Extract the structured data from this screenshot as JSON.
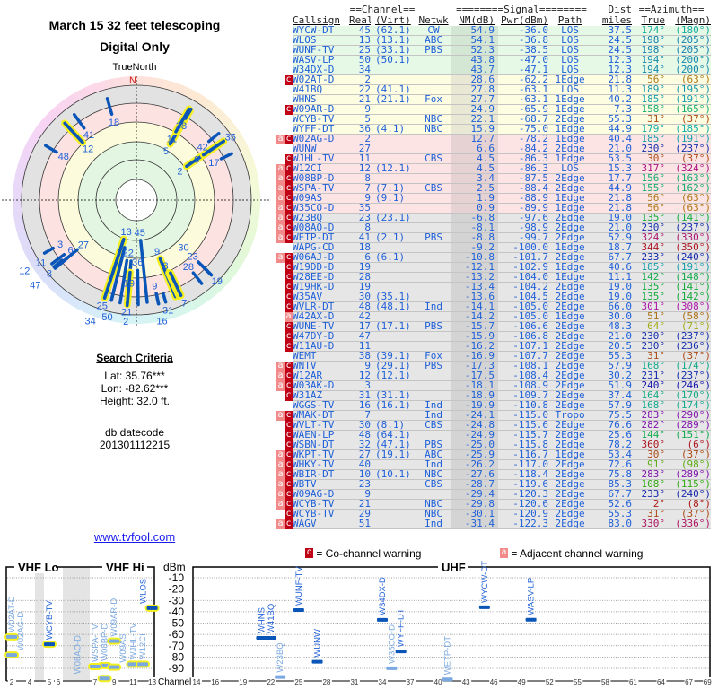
{
  "left": {
    "title": "March 15 32 feet telescoping",
    "subtitle": "Digital Only",
    "north_label": "TrueNorth",
    "north_marker": "N",
    "search_heading": "Search Criteria",
    "lat": "Lat: 35.76***",
    "lon": "Lon: -82.62***",
    "height": "Height: 32.0 ft.",
    "db_label": "db datecode",
    "db_value": "201301112215",
    "link": "www.tvfool.com"
  },
  "table": {
    "group_headers": {
      "channel": "==Channel==",
      "signal": "========Signal========",
      "dist": "Dist",
      "azimuth": "==Azimuth=="
    },
    "columns": [
      "Callsign",
      "Real",
      "(Virt)",
      "Netwk",
      "NM(dB)",
      "Pwr(dBm)",
      "Path",
      "miles",
      "True",
      "(Magn)"
    ],
    "rows": [
      {
        "flags": "",
        "call": "WYCW-DT",
        "real": "45",
        "virt": "(62.1)",
        "net": "CW",
        "nm": "54.9",
        "pwr": "-36.0",
        "path": "LOS",
        "dist": "37.5",
        "az": "174°",
        "magn": "(180°)"
      },
      {
        "flags": "",
        "call": "WLOS",
        "real": "13",
        "virt": "(13.1)",
        "net": "ABC",
        "nm": "54.1",
        "pwr": "-36.8",
        "path": "LOS",
        "dist": "24.5",
        "az": "198°",
        "magn": "(205°)"
      },
      {
        "flags": "",
        "call": "WUNF-TV",
        "real": "25",
        "virt": "(33.1)",
        "net": "PBS",
        "nm": "52.3",
        "pwr": "-38.5",
        "path": "LOS",
        "dist": "24.5",
        "az": "198°",
        "magn": "(205°)"
      },
      {
        "flags": "",
        "call": "WASV-LP",
        "real": "50",
        "virt": "(50.1)",
        "net": "",
        "nm": "43.8",
        "pwr": "-47.0",
        "path": "LOS",
        "dist": "12.3",
        "az": "194°",
        "magn": "(200°)"
      },
      {
        "flags": "",
        "call": "W34DX-D",
        "real": "34",
        "virt": "",
        "net": "",
        "nm": "43.7",
        "pwr": "-47.1",
        "path": "LOS",
        "dist": "12.3",
        "az": "194°",
        "magn": "(200°)"
      },
      {
        "flags": "c",
        "call": "W02AT-D",
        "real": "2",
        "virt": "",
        "net": "",
        "nm": "28.6",
        "pwr": "-62.2",
        "path": "1Edge",
        "dist": "21.8",
        "az": "56°",
        "magn": "(63°)"
      },
      {
        "flags": "",
        "call": "W41BQ",
        "real": "22",
        "virt": "(41.1)",
        "net": "",
        "nm": "27.8",
        "pwr": "-63.1",
        "path": "LOS",
        "dist": "11.3",
        "az": "189°",
        "magn": "(195°)"
      },
      {
        "flags": "",
        "call": "WHNS",
        "real": "21",
        "virt": "(21.1)",
        "net": "Fox",
        "nm": "27.7",
        "pwr": "-63.1",
        "path": "1Edge",
        "dist": "40.2",
        "az": "185°",
        "magn": "(191°)"
      },
      {
        "flags": "c",
        "call": "W09AR-D",
        "real": "9",
        "virt": "",
        "net": "",
        "nm": "24.9",
        "pwr": "-65.9",
        "path": "1Edge",
        "dist": "7.3",
        "az": "158°",
        "magn": "(165°)"
      },
      {
        "flags": "",
        "call": "WCYB-TV",
        "real": "5",
        "virt": "",
        "net": "NBC",
        "nm": "22.1",
        "pwr": "-68.7",
        "path": "2Edge",
        "dist": "55.3",
        "az": "31°",
        "magn": "(37°)"
      },
      {
        "flags": "",
        "call": "WYFF-DT",
        "real": "36",
        "virt": "(4.1)",
        "net": "NBC",
        "nm": "15.9",
        "pwr": "-75.0",
        "path": "1Edge",
        "dist": "44.9",
        "az": "179°",
        "magn": "(185°)"
      },
      {
        "flags": "ac",
        "call": "W02AG-D",
        "real": "2",
        "virt": "",
        "net": "",
        "nm": "12.7",
        "pwr": "-78.2",
        "path": "1Edge",
        "dist": "40.4",
        "az": "185°",
        "magn": "(191°)"
      },
      {
        "flags": "",
        "call": "WUNW",
        "real": "27",
        "virt": "",
        "net": "",
        "nm": "6.6",
        "pwr": "-84.2",
        "path": "2Edge",
        "dist": "21.0",
        "az": "230°",
        "magn": "(237°)"
      },
      {
        "flags": "c",
        "call": "WJHL-TV",
        "real": "11",
        "virt": "",
        "net": "CBS",
        "nm": "4.5",
        "pwr": "-86.3",
        "path": "1Edge",
        "dist": "53.5",
        "az": "30°",
        "magn": "(37°)"
      },
      {
        "flags": "ac",
        "call": "W12CI",
        "real": "12",
        "virt": "(12.1)",
        "net": "",
        "nm": "4.5",
        "pwr": "-86.3",
        "path": "LOS",
        "dist": "15.3",
        "az": "317°",
        "magn": "(324°)"
      },
      {
        "flags": "ac",
        "call": "W08BP-D",
        "real": "8",
        "virt": "",
        "net": "",
        "nm": "3.4",
        "pwr": "-87.5",
        "path": "2Edge",
        "dist": "17.7",
        "az": "156°",
        "magn": "(163°)"
      },
      {
        "flags": "ac",
        "call": "WSPA-TV",
        "real": "7",
        "virt": "(7.1)",
        "net": "CBS",
        "nm": "2.5",
        "pwr": "-88.4",
        "path": "2Edge",
        "dist": "44.9",
        "az": "155°",
        "magn": "(162°)"
      },
      {
        "flags": "ac",
        "call": "W09AS",
        "real": "9",
        "virt": "(9.1)",
        "net": "",
        "nm": "1.9",
        "pwr": "-88.9",
        "path": "1Edge",
        "dist": "21.8",
        "az": "56°",
        "magn": "(63°)"
      },
      {
        "flags": "ac",
        "call": "W35CO-D",
        "real": "35",
        "virt": "",
        "net": "",
        "nm": "0.9",
        "pwr": "-89.9",
        "path": "1Edge",
        "dist": "21.8",
        "az": "56°",
        "magn": "(63°)"
      },
      {
        "flags": "ac",
        "call": "W23BQ",
        "real": "23",
        "virt": "(23.1)",
        "net": "",
        "nm": "-6.8",
        "pwr": "-97.6",
        "path": "2Edge",
        "dist": "19.0",
        "az": "135°",
        "magn": "(141°)"
      },
      {
        "flags": "ac",
        "call": "W08AO-D",
        "real": "8",
        "virt": "",
        "net": "",
        "nm": "-8.1",
        "pwr": "-98.9",
        "path": "2Edge",
        "dist": "21.0",
        "az": "230°",
        "magn": "(237°)"
      },
      {
        "flags": "ac",
        "call": "WETP-DT",
        "real": "41",
        "virt": "(2.1)",
        "net": "PBS",
        "nm": "-8.8",
        "pwr": "-99.7",
        "path": "2Edge",
        "dist": "52.9",
        "az": "324°",
        "magn": "(330°)"
      },
      {
        "flags": "",
        "call": "WAPG-CD",
        "real": "18",
        "virt": "",
        "net": "",
        "nm": "-9.2",
        "pwr": "-100.0",
        "path": "1Edge",
        "dist": "18.7",
        "az": "344°",
        "magn": "(350°)"
      },
      {
        "flags": "ac",
        "call": "W06AJ-D",
        "real": "6",
        "virt": "(6.1)",
        "net": "",
        "nm": "-10.8",
        "pwr": "-101.7",
        "path": "2Edge",
        "dist": "67.7",
        "az": "233°",
        "magn": "(240°)"
      },
      {
        "flags": "c",
        "call": "W19DD-D",
        "real": "19",
        "virt": "",
        "net": "",
        "nm": "-12.1",
        "pwr": "-102.9",
        "path": "1Edge",
        "dist": "40.6",
        "az": "185°",
        "magn": "(191°)"
      },
      {
        "flags": "c",
        "call": "W28EE-D",
        "real": "28",
        "virt": "",
        "net": "",
        "nm": "-13.2",
        "pwr": "-104.0",
        "path": "1Edge",
        "dist": "11.1",
        "az": "142°",
        "magn": "(148°)"
      },
      {
        "flags": "c",
        "call": "W19HK-D",
        "real": "19",
        "virt": "",
        "net": "",
        "nm": "-13.4",
        "pwr": "-104.2",
        "path": "2Edge",
        "dist": "19.0",
        "az": "135°",
        "magn": "(141°)"
      },
      {
        "flags": "c",
        "call": "W35AV",
        "real": "30",
        "virt": "(35.1)",
        "net": "",
        "nm": "-13.6",
        "pwr": "-104.5",
        "path": "2Edge",
        "dist": "19.0",
        "az": "135°",
        "magn": "(142°)"
      },
      {
        "flags": "c",
        "call": "WVLR-DT",
        "real": "48",
        "virt": "(48.1)",
        "net": "Ind",
        "nm": "-14.1",
        "pwr": "-105.0",
        "path": "2Edge",
        "dist": "66.0",
        "az": "301°",
        "magn": "(308°)"
      },
      {
        "flags": "a",
        "call": "W42AX-D",
        "real": "42",
        "virt": "",
        "net": "",
        "nm": "-14.2",
        "pwr": "-105.0",
        "path": "1Edge",
        "dist": "30.0",
        "az": "51°",
        "magn": "(58°)"
      },
      {
        "flags": "c",
        "call": "WUNE-TV",
        "real": "17",
        "virt": "(17.1)",
        "net": "PBS",
        "nm": "-15.7",
        "pwr": "-106.6",
        "path": "2Edge",
        "dist": "48.3",
        "az": "64°",
        "magn": "(71°)"
      },
      {
        "flags": "c",
        "call": "W47DY-D",
        "real": "47",
        "virt": "",
        "net": "",
        "nm": "-15.9",
        "pwr": "-106.8",
        "path": "2Edge",
        "dist": "21.0",
        "az": "230°",
        "magn": "(237°)"
      },
      {
        "flags": "c",
        "call": "W11AU-D",
        "real": "11",
        "virt": "",
        "net": "",
        "nm": "-16.2",
        "pwr": "-107.1",
        "path": "2Edge",
        "dist": "20.5",
        "az": "230°",
        "magn": "(236°)"
      },
      {
        "flags": "",
        "call": "WEMT",
        "real": "38",
        "virt": "(39.1)",
        "net": "Fox",
        "nm": "-16.9",
        "pwr": "-107.7",
        "path": "2Edge",
        "dist": "55.3",
        "az": "31°",
        "magn": "(37°)"
      },
      {
        "flags": "ac",
        "call": "WNTV",
        "real": "9",
        "virt": "(29.1)",
        "net": "PBS",
        "nm": "-17.3",
        "pwr": "-108.1",
        "path": "2Edge",
        "dist": "57.9",
        "az": "168°",
        "magn": "(174°)"
      },
      {
        "flags": "ac",
        "call": "W12AR",
        "real": "12",
        "virt": "(12.1)",
        "net": "",
        "nm": "-17.5",
        "pwr": "-108.4",
        "path": "2Edge",
        "dist": "30.2",
        "az": "231°",
        "magn": "(237°)"
      },
      {
        "flags": "ac",
        "call": "W03AK-D",
        "real": "3",
        "virt": "",
        "net": "",
        "nm": "-18.1",
        "pwr": "-108.9",
        "path": "2Edge",
        "dist": "51.9",
        "az": "240°",
        "magn": "(246°)"
      },
      {
        "flags": "c",
        "call": "W31AZ",
        "real": "31",
        "virt": "(31.1)",
        "net": "",
        "nm": "-18.9",
        "pwr": "-109.7",
        "path": "2Edge",
        "dist": "37.4",
        "az": "164°",
        "magn": "(170°)"
      },
      {
        "flags": "",
        "call": "WGGS-TV",
        "real": "16",
        "virt": "(16.1)",
        "net": "Ind",
        "nm": "-19.9",
        "pwr": "-110.8",
        "path": "2Edge",
        "dist": "57.9",
        "az": "168°",
        "magn": "(174°)"
      },
      {
        "flags": "ac",
        "call": "WMAK-DT",
        "real": "7",
        "virt": "",
        "net": "Ind",
        "nm": "-24.1",
        "pwr": "-115.0",
        "path": "Tropo",
        "dist": "75.5",
        "az": "283°",
        "magn": "(290°)"
      },
      {
        "flags": "c",
        "call": "WVLT-TV",
        "real": "30",
        "virt": "(8.1)",
        "net": "CBS",
        "nm": "-24.8",
        "pwr": "-115.6",
        "path": "2Edge",
        "dist": "76.6",
        "az": "282°",
        "magn": "(289°)"
      },
      {
        "flags": "c",
        "call": "WAEN-LP",
        "real": "48",
        "virt": "(64.1)",
        "net": "",
        "nm": "-24.9",
        "pwr": "-115.7",
        "path": "2Edge",
        "dist": "25.6",
        "az": "144°",
        "magn": "(151°)"
      },
      {
        "flags": "c",
        "call": "WSBN-DT",
        "real": "32",
        "virt": "(47.1)",
        "net": "PBS",
        "nm": "-25.0",
        "pwr": "-115.8",
        "path": "2Edge",
        "dist": "78.2",
        "az": "360°",
        "magn": "(6°)"
      },
      {
        "flags": "ac",
        "call": "WKPT-TV",
        "real": "27",
        "virt": "(19.1)",
        "net": "ABC",
        "nm": "-25.9",
        "pwr": "-116.7",
        "path": "1Edge",
        "dist": "53.4",
        "az": "30°",
        "magn": "(37°)"
      },
      {
        "flags": "ac",
        "call": "WHKY-TV",
        "real": "40",
        "virt": "",
        "net": "Ind",
        "nm": "-26.2",
        "pwr": "-117.0",
        "path": "2Edge",
        "dist": "72.6",
        "az": "91°",
        "magn": "(98°)"
      },
      {
        "flags": "ac",
        "call": "WBIR-DT",
        "real": "10",
        "virt": "(10.1)",
        "net": "NBC",
        "nm": "-27.6",
        "pwr": "-118.4",
        "path": "2Edge",
        "dist": "75.8",
        "az": "283°",
        "magn": "(289°)"
      },
      {
        "flags": "ac",
        "call": "WBTV",
        "real": "23",
        "virt": "",
        "net": "CBS",
        "nm": "-28.7",
        "pwr": "-119.6",
        "path": "2Edge",
        "dist": "85.3",
        "az": "108°",
        "magn": "(115°)"
      },
      {
        "flags": "ac",
        "call": "W09AG-D",
        "real": "9",
        "virt": "",
        "net": "",
        "nm": "-29.4",
        "pwr": "-120.3",
        "path": "2Edge",
        "dist": "67.7",
        "az": "233°",
        "magn": "(240°)"
      },
      {
        "flags": "ac",
        "call": "WCYB-TV",
        "real": "21",
        "virt": "",
        "net": "NBC",
        "nm": "-29.8",
        "pwr": "-120.6",
        "path": "2Edge",
        "dist": "52.6",
        "az": "2°",
        "magn": "(8°)"
      },
      {
        "flags": "c",
        "call": "WCYB-TV",
        "real": "29",
        "virt": "",
        "net": "NBC",
        "nm": "-30.1",
        "pwr": "-120.9",
        "path": "2Edge",
        "dist": "55.3",
        "az": "31°",
        "magn": "(37°)"
      },
      {
        "flags": "ac",
        "call": "WAGV",
        "real": "51",
        "virt": "",
        "net": "Ind",
        "nm": "-31.4",
        "pwr": "-122.3",
        "path": "2Edge",
        "dist": "83.0",
        "az": "330°",
        "magn": "(336°)"
      }
    ]
  },
  "legend": {
    "co_flag": "c",
    "co_text": "= Co-channel warning",
    "adj_flag": "a",
    "adj_text": "= Adjacent channel warning"
  },
  "spectrum": {
    "vhf_lo": "VHF Lo",
    "vhf_hi": "VHF Hi",
    "uhf": "UHF",
    "unit": "dBm",
    "channel_label": "Channel",
    "dbm_ticks": [
      "-10",
      "-20",
      "-30",
      "-40",
      "-50",
      "-60",
      "-70",
      "-80",
      "-90"
    ],
    "vhf_channel_ticks": [
      "2",
      "4",
      "5",
      "6",
      "7",
      "9",
      "11",
      "13"
    ],
    "uhf_channel_ticks": [
      "14",
      "16",
      "19",
      "22",
      "25",
      "28",
      "31",
      "34",
      "37",
      "40",
      "43",
      "46",
      "49",
      "52",
      "55",
      "58",
      "61",
      "64",
      "67",
      "69"
    ]
  },
  "colors": {
    "co_flag": "#c00014",
    "adj_flag": "#f28a8a",
    "text_blue": "#1f60d8",
    "mark_strong": "#0a55b8",
    "mark_weak": "#7aa8e0",
    "highlight": "#f4f020"
  }
}
